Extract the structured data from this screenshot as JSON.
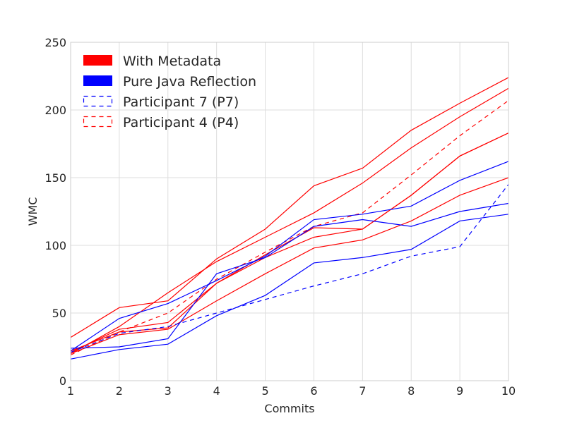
{
  "chart_data": {
    "type": "line",
    "title": "",
    "xlabel": "Commits",
    "ylabel": "WMC",
    "xlim": [
      1,
      10
    ],
    "ylim": [
      0,
      250
    ],
    "xticks": [
      "1",
      "2",
      "3",
      "4",
      "5",
      "6",
      "7",
      "8",
      "9",
      "10"
    ],
    "yticks": [
      "0",
      "50",
      "100",
      "150",
      "200",
      "250"
    ],
    "grid": true,
    "legend_position": "top-left",
    "legend": [
      {
        "label": "With Metadata",
        "color": "#ff0000",
        "style": "patch"
      },
      {
        "label": "Pure Java Reflection",
        "color": "#0000ff",
        "style": "patch"
      },
      {
        "label": "Participant 7 (P7)",
        "color": "#0000ff",
        "style": "dashed"
      },
      {
        "label": "Participant 4 (P4)",
        "color": "#ff0000",
        "style": "dashed"
      }
    ],
    "x": [
      1,
      2,
      3,
      4,
      5,
      6,
      7,
      8,
      9,
      10
    ],
    "series": [
      {
        "group": "With Metadata",
        "color": "#ff0000",
        "dashed": false,
        "values": [
          32,
          54,
          59,
          90,
          112,
          144,
          157,
          185,
          205,
          224
        ]
      },
      {
        "group": "With Metadata",
        "color": "#ff0000",
        "dashed": false,
        "values": [
          20,
          40,
          65,
          88,
          106,
          124,
          146,
          172,
          195,
          216
        ]
      },
      {
        "group": "With Metadata",
        "color": "#ff0000",
        "dashed": false,
        "values": [
          22,
          36,
          39,
          72,
          93,
          113,
          112,
          137,
          166,
          183
        ]
      },
      {
        "group": "With Metadata",
        "color": "#ff0000",
        "dashed": false,
        "values": [
          21,
          38,
          43,
          72,
          91,
          106,
          112,
          137,
          166,
          183
        ]
      },
      {
        "group": "With Metadata",
        "color": "#ff0000",
        "dashed": false,
        "values": [
          20,
          34,
          38,
          59,
          79,
          98,
          104,
          118,
          137,
          150
        ]
      },
      {
        "group": "Participant 4 (P4)",
        "color": "#ff0000",
        "dashed": true,
        "values": [
          19,
          36,
          50,
          75,
          95,
          114,
          124,
          152,
          181,
          207
        ]
      },
      {
        "group": "Pure Java Reflection",
        "color": "#0000ff",
        "dashed": false,
        "values": [
          22,
          46,
          57,
          74,
          92,
          119,
          123,
          129,
          148,
          162
        ]
      },
      {
        "group": "Pure Java Reflection",
        "color": "#0000ff",
        "dashed": false,
        "values": [
          24,
          25,
          31,
          79,
          91,
          114,
          119,
          114,
          125,
          131
        ]
      },
      {
        "group": "Pure Java Reflection",
        "color": "#0000ff",
        "dashed": false,
        "values": [
          16,
          23,
          27,
          48,
          63,
          87,
          91,
          97,
          118,
          123
        ]
      },
      {
        "group": "Participant 7 (P7)",
        "color": "#0000ff",
        "dashed": true,
        "values": [
          21,
          35,
          40,
          50,
          60,
          70,
          79,
          92,
          99,
          145
        ]
      }
    ]
  }
}
